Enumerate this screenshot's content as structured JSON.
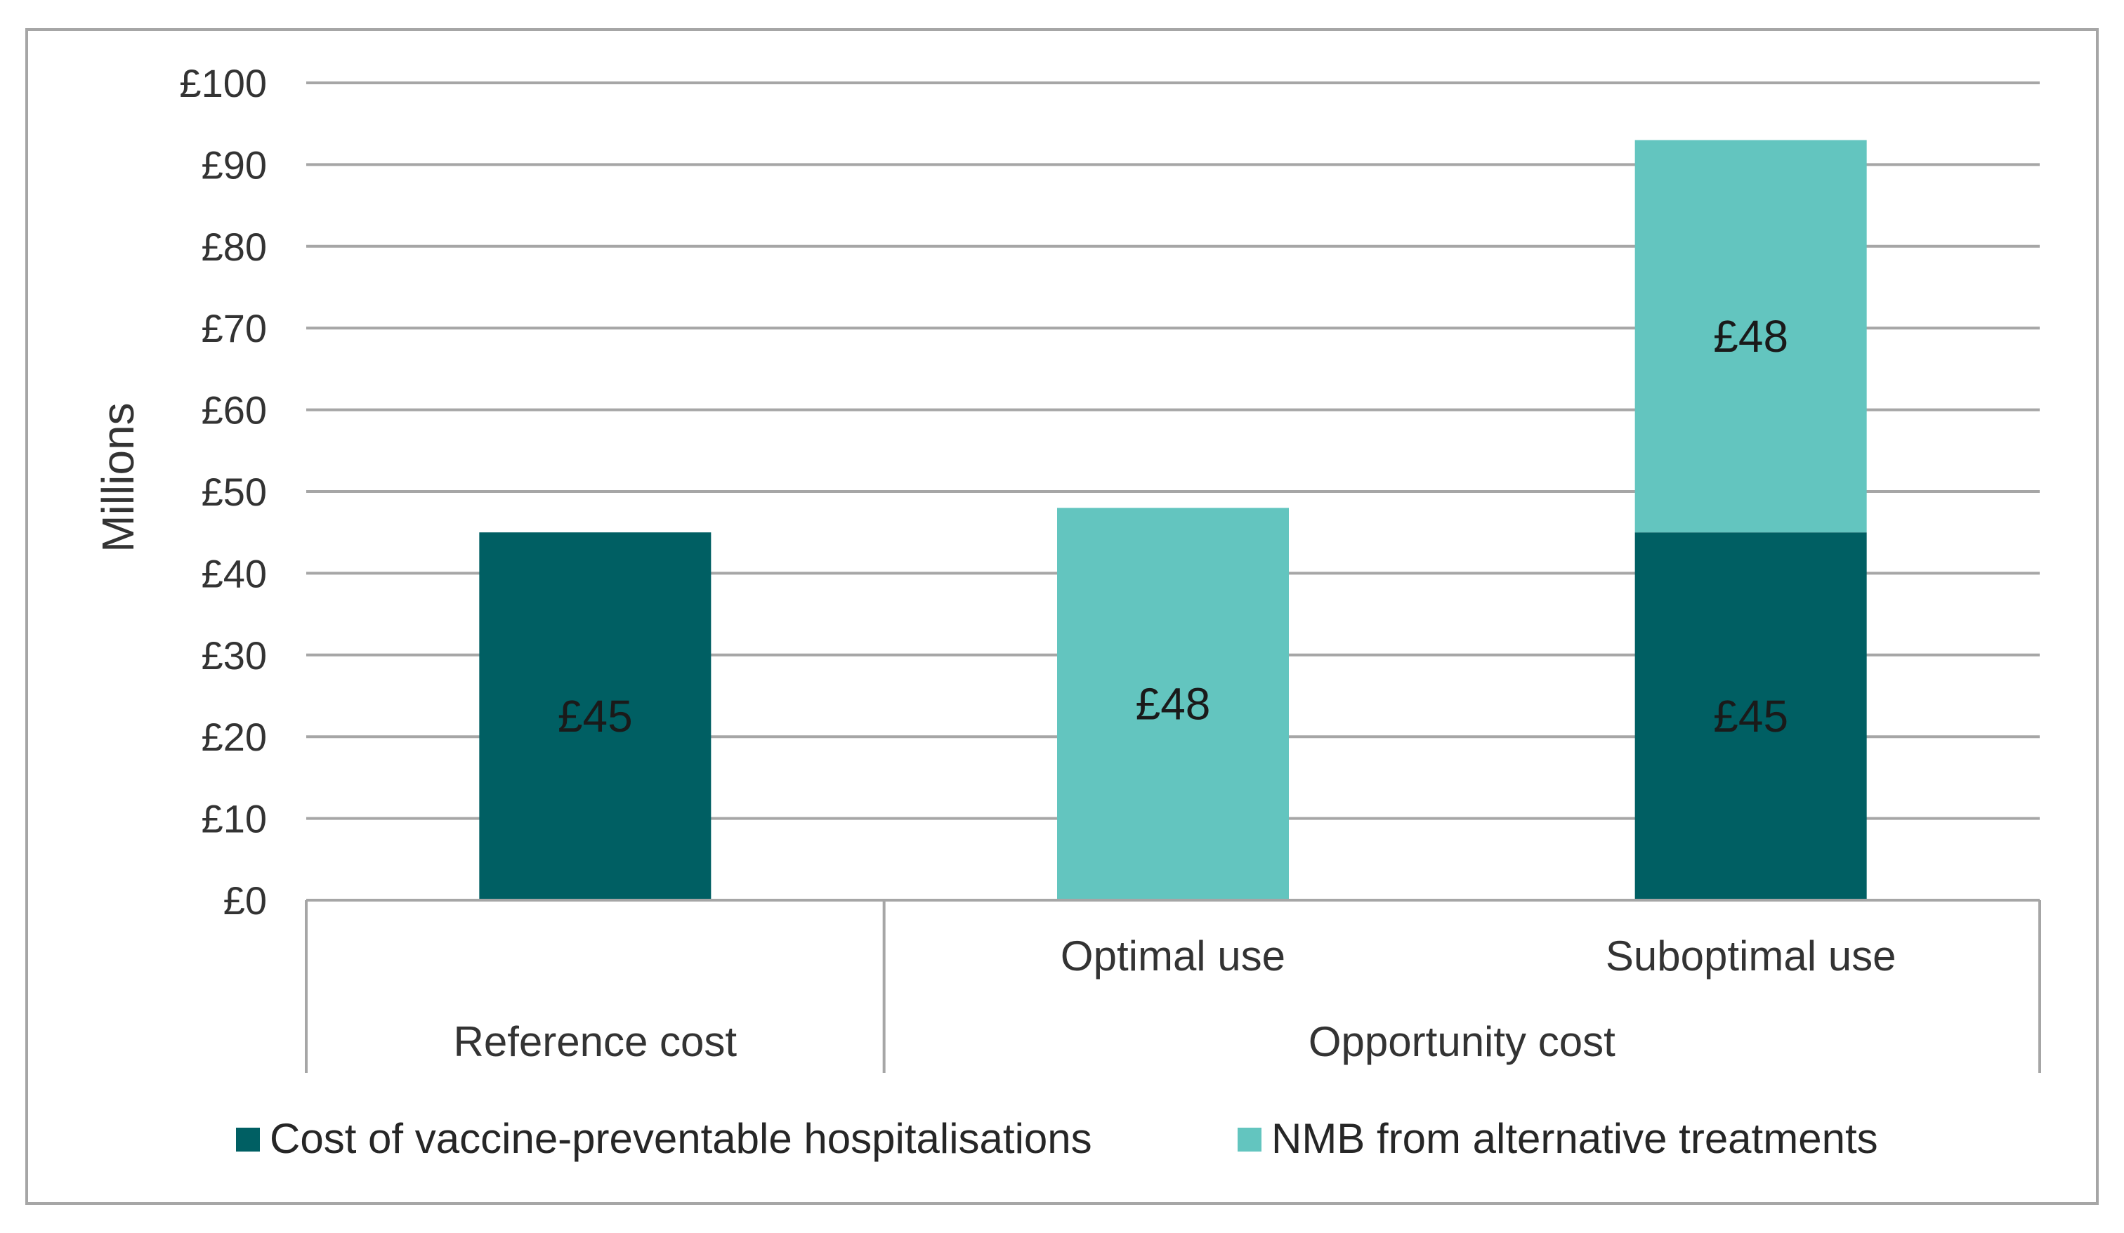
{
  "chart_data": {
    "type": "bar",
    "stacked": true,
    "title": "",
    "ylabel": "Millions",
    "xlabel": "",
    "ylim": [
      0,
      100
    ],
    "ytick_step": 10,
    "ytick_prefix": "£",
    "y_tick_labels": [
      "£0",
      "£10",
      "£20",
      "£30",
      "£40",
      "£50",
      "£60",
      "£70",
      "£80",
      "£90",
      "£100"
    ],
    "grid": true,
    "categories": [
      "Reference cost",
      "Optimal use",
      "Suboptimal use"
    ],
    "category_groups": [
      {
        "label": "Reference cost",
        "members": [
          "Reference cost"
        ],
        "show_member_labels": false
      },
      {
        "label": "Opportunity cost",
        "members": [
          "Optimal use",
          "Suboptimal use"
        ],
        "show_member_labels": true
      }
    ],
    "series": [
      {
        "name": "Cost of vaccine-preventable hospitalisations",
        "color": "#005f63",
        "values": [
          45,
          0,
          45
        ],
        "data_labels": [
          "£45",
          "",
          "£45"
        ]
      },
      {
        "name": "NMB from alternative treatments",
        "color": "#63c5bf",
        "values": [
          0,
          48,
          48
        ],
        "data_labels": [
          "",
          "£48",
          "£48"
        ]
      }
    ],
    "legend_position": "bottom"
  }
}
